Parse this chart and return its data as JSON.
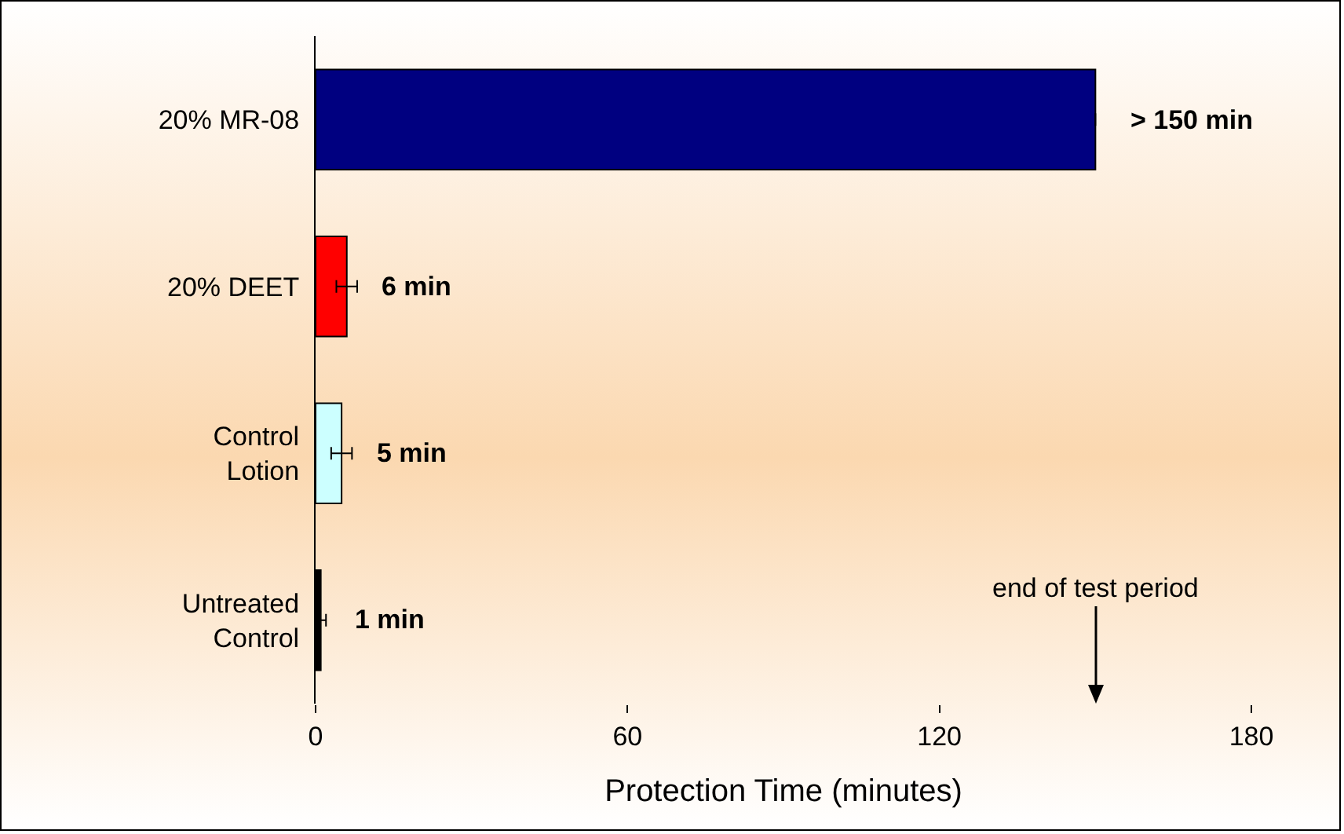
{
  "chart_data": {
    "type": "bar",
    "orientation": "horizontal",
    "categories": [
      "20% MR-08",
      "20% DEET",
      "Control\nLotion",
      "Untreated\nControl"
    ],
    "values": [
      150,
      6,
      5,
      1
    ],
    "colors": [
      "#000080",
      "#ff0000",
      "#ccffff",
      "#000000"
    ],
    "errors": [
      null,
      2,
      2,
      1
    ],
    "value_labels": [
      "> 150 min",
      "6 min",
      "5 min",
      "1 min"
    ],
    "xlabel": "Protection Time (minutes)",
    "xlim": [
      0,
      180
    ],
    "xticks": [
      0,
      60,
      120,
      180
    ],
    "grid": false,
    "legend": false,
    "annotations": [
      {
        "text": "end of test period",
        "x": 150
      }
    ]
  }
}
